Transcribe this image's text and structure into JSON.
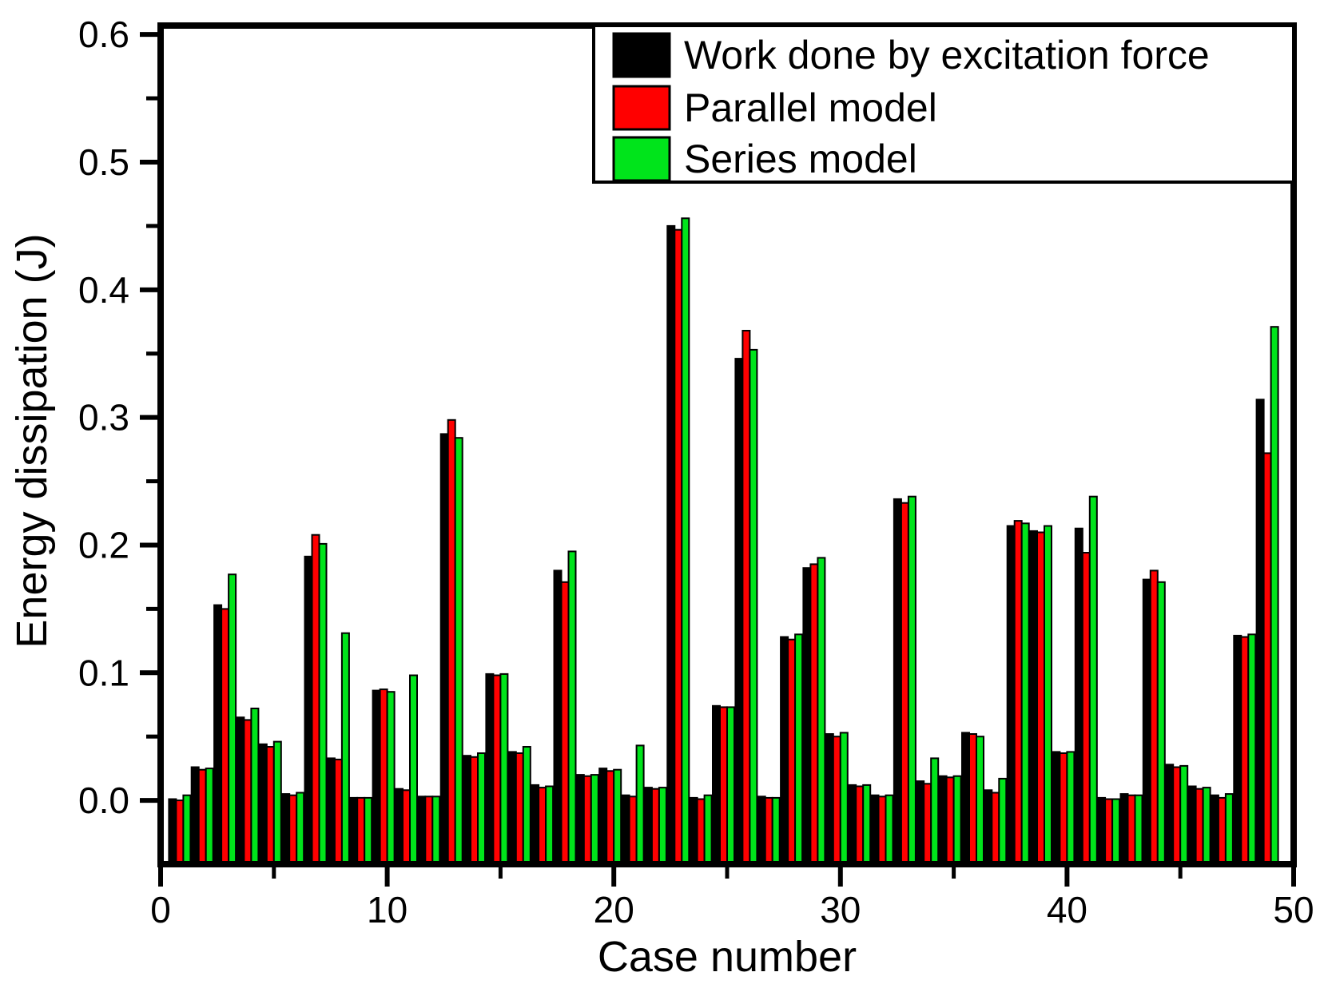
{
  "chart_data": {
    "type": "bar",
    "title": "",
    "xlabel": "Case number",
    "ylabel": "Energy dissipation (J)",
    "x_range": [
      0,
      50
    ],
    "ylim": [
      -0.05,
      0.607
    ],
    "yticks": [
      0.0,
      0.1,
      0.2,
      0.3,
      0.4,
      0.5,
      0.6
    ],
    "ytick_labels": [
      "0.0",
      "0.1",
      "0.2",
      "0.3",
      "0.4",
      "0.5",
      "0.6"
    ],
    "yminor_step": 0.05,
    "xticks": [
      0,
      10,
      20,
      30,
      40,
      50
    ],
    "xtick_labels": [
      "0",
      "10",
      "20",
      "30",
      "40",
      "50"
    ],
    "xminor_ticks": [
      5,
      15,
      25,
      35,
      45
    ],
    "grid": false,
    "legend_position": "top-center-attached",
    "baseline_value": -0.05,
    "cases": [
      1,
      2,
      3,
      4,
      5,
      6,
      7,
      8,
      9,
      10,
      11,
      12,
      13,
      14,
      15,
      16,
      17,
      18,
      19,
      20,
      21,
      22,
      23,
      24,
      25,
      26,
      27,
      28,
      29,
      30,
      31,
      32,
      33,
      34,
      35,
      36,
      37,
      38,
      39,
      40,
      41,
      42,
      43,
      44,
      45,
      46,
      47,
      48,
      49
    ],
    "series": [
      {
        "name": "Work done by excitation force",
        "color": "#000000",
        "values": [
          0.001,
          0.026,
          0.153,
          0.065,
          0.044,
          0.005,
          0.191,
          0.033,
          0.002,
          0.086,
          0.009,
          0.003,
          0.287,
          0.035,
          0.099,
          0.038,
          0.012,
          0.18,
          0.02,
          0.025,
          0.004,
          0.01,
          0.45,
          0.002,
          0.074,
          0.346,
          0.003,
          0.128,
          0.182,
          0.052,
          0.012,
          0.004,
          0.236,
          0.015,
          0.019,
          0.053,
          0.008,
          0.215,
          0.211,
          0.038,
          0.213,
          0.002,
          0.005,
          0.173,
          0.028,
          0.011,
          0.004,
          0.129,
          0.314
        ]
      },
      {
        "name": "Parallel model",
        "color": "#FF0000",
        "values": [
          0.0,
          0.024,
          0.15,
          0.063,
          0.042,
          0.004,
          0.208,
          0.032,
          0.002,
          0.087,
          0.008,
          0.003,
          0.298,
          0.034,
          0.098,
          0.037,
          0.01,
          0.171,
          0.019,
          0.023,
          0.003,
          0.009,
          0.447,
          0.001,
          0.073,
          0.368,
          0.002,
          0.126,
          0.185,
          0.05,
          0.011,
          0.003,
          0.233,
          0.013,
          0.018,
          0.052,
          0.006,
          0.219,
          0.21,
          0.037,
          0.194,
          0.001,
          0.004,
          0.18,
          0.026,
          0.009,
          0.002,
          0.128,
          0.272
        ]
      },
      {
        "name": "Series model",
        "color": "#00E41B",
        "values": [
          0.004,
          0.025,
          0.177,
          0.072,
          0.046,
          0.006,
          0.201,
          0.131,
          0.002,
          0.085,
          0.098,
          0.003,
          0.284,
          0.037,
          0.099,
          0.042,
          0.011,
          0.195,
          0.02,
          0.024,
          0.043,
          0.01,
          0.456,
          0.004,
          0.073,
          0.353,
          0.002,
          0.13,
          0.19,
          0.053,
          0.012,
          0.004,
          0.238,
          0.033,
          0.019,
          0.05,
          0.017,
          0.217,
          0.215,
          0.038,
          0.238,
          0.001,
          0.004,
          0.171,
          0.027,
          0.01,
          0.005,
          0.13,
          0.371
        ]
      }
    ],
    "colors": {
      "frame": "#000000",
      "background": "#ffffff",
      "bar_outline": "#000000"
    }
  }
}
